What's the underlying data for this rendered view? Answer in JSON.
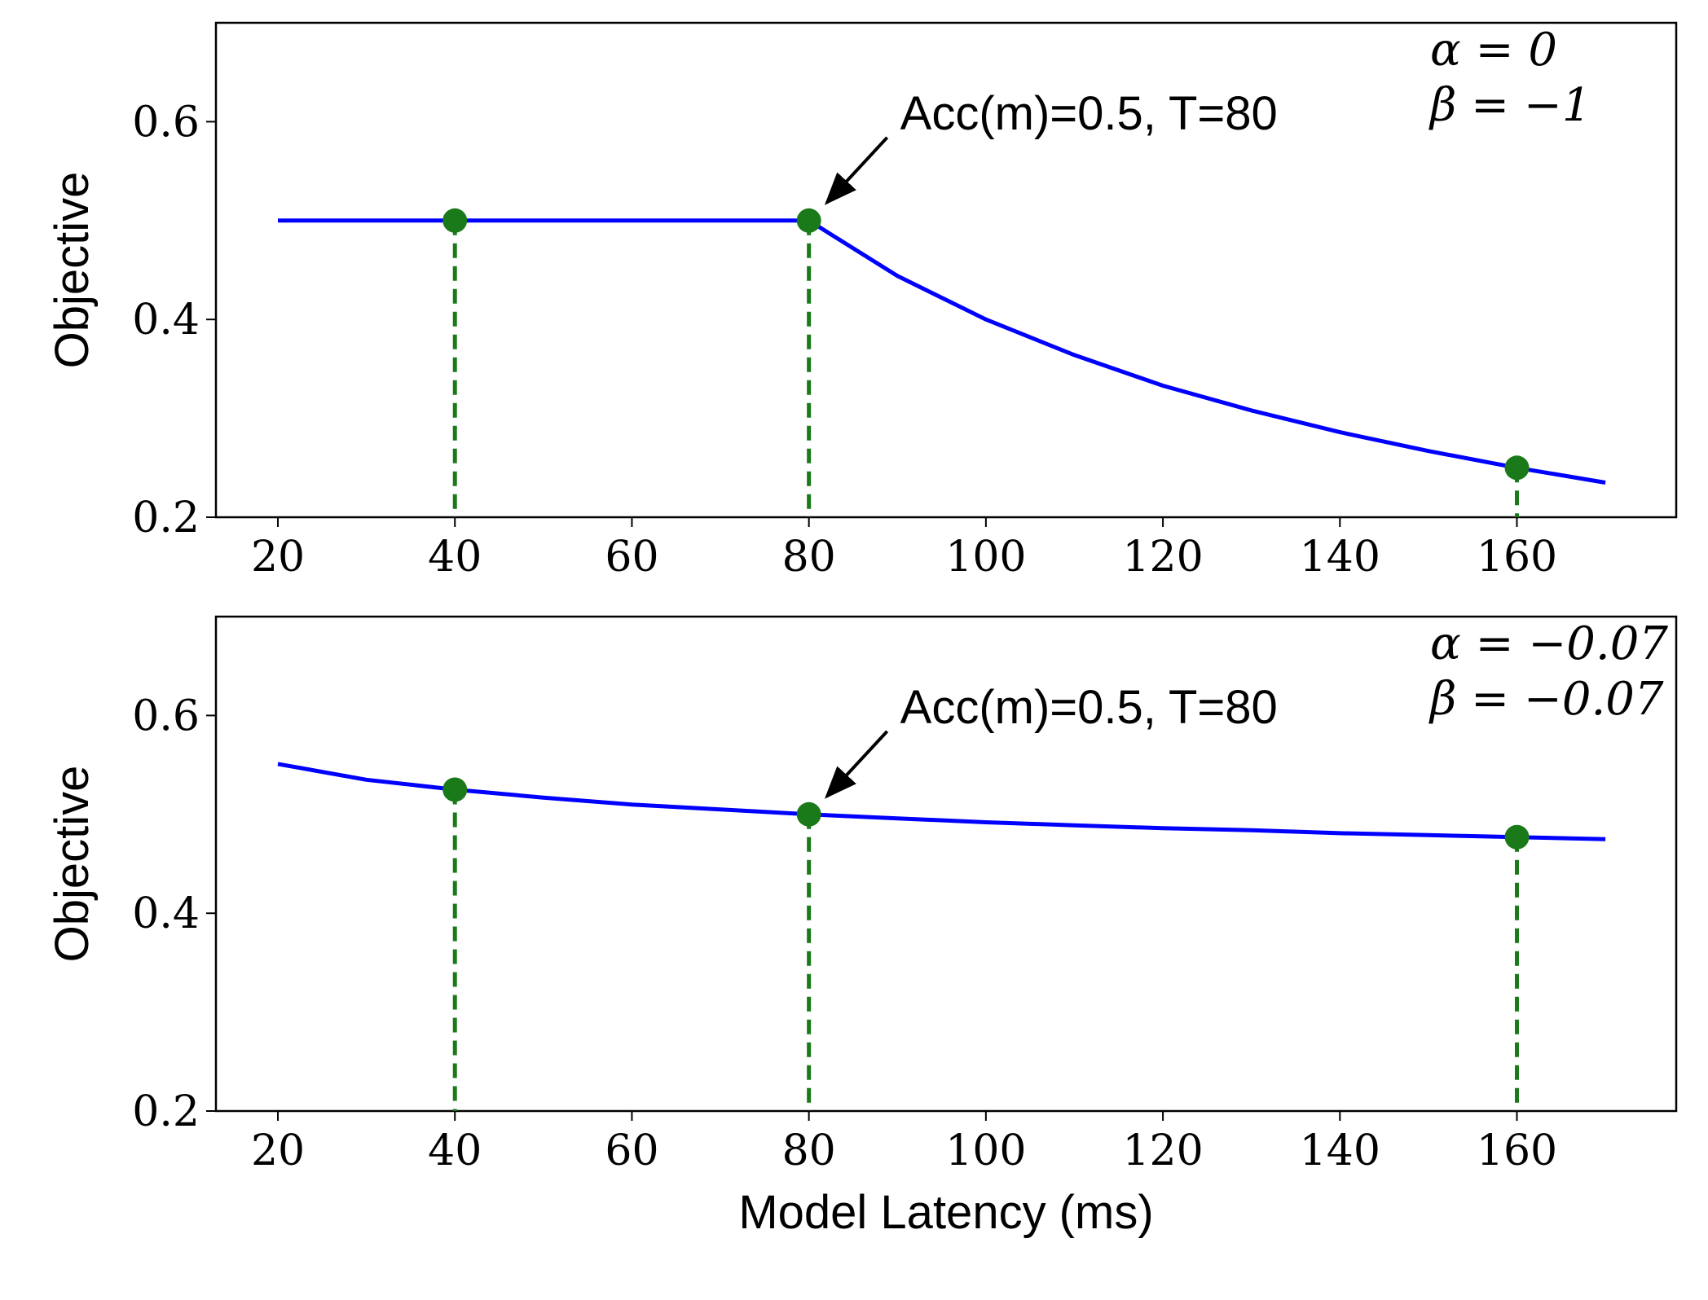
{
  "chart_data": [
    {
      "type": "line",
      "title": "",
      "xlabel": "",
      "ylabel": "Objective",
      "xlim": [
        13,
        178
      ],
      "ylim": [
        0.2,
        0.7
      ],
      "xticks": [
        20,
        40,
        60,
        80,
        100,
        120,
        140,
        160
      ],
      "xtick_labels": [
        "20",
        "40",
        "60",
        "80",
        "100",
        "120",
        "140",
        "160"
      ],
      "yticks": [
        0.2,
        0.4,
        0.6
      ],
      "ytick_labels": [
        "0.2",
        "0.4",
        "0.6"
      ],
      "grid": false,
      "params": {
        "alpha_text": "α = 0",
        "beta_text": "β = −1",
        "alpha": 0,
        "beta": -1
      },
      "acc": 0.5,
      "target_latency": 80,
      "curve": {
        "color": "#0000ff",
        "x": [
          20,
          30,
          40,
          50,
          60,
          70,
          80,
          90,
          100,
          110,
          120,
          130,
          140,
          150,
          160,
          170
        ],
        "y": [
          0.5,
          0.5,
          0.5,
          0.5,
          0.5,
          0.5,
          0.5,
          0.444,
          0.4,
          0.364,
          0.333,
          0.308,
          0.286,
          0.267,
          0.25,
          0.235
        ]
      },
      "markers": {
        "color": "#1a7a1a",
        "x": [
          40,
          80,
          160
        ],
        "y": [
          0.5,
          0.5,
          0.25
        ]
      },
      "annotation": {
        "text": "Acc(m)=0.5, T=80",
        "x": 80,
        "y": 0.5
      }
    },
    {
      "type": "line",
      "title": "",
      "xlabel": "Model Latency (ms)",
      "ylabel": "Objective",
      "xlim": [
        13,
        178
      ],
      "ylim": [
        0.2,
        0.7
      ],
      "xticks": [
        20,
        40,
        60,
        80,
        100,
        120,
        140,
        160
      ],
      "xtick_labels": [
        "20",
        "40",
        "60",
        "80",
        "100",
        "120",
        "140",
        "160"
      ],
      "yticks": [
        0.2,
        0.4,
        0.6
      ],
      "ytick_labels": [
        "0.2",
        "0.4",
        "0.6"
      ],
      "grid": false,
      "params": {
        "alpha_text": "α = −0.07",
        "beta_text": "β = −0.07",
        "alpha": -0.07,
        "beta": -0.07
      },
      "acc": 0.5,
      "target_latency": 80,
      "curve": {
        "color": "#0000ff",
        "x": [
          20,
          30,
          40,
          50,
          60,
          70,
          80,
          90,
          100,
          110,
          120,
          130,
          140,
          150,
          160,
          170
        ],
        "y": [
          0.551,
          0.535,
          0.525,
          0.517,
          0.51,
          0.505,
          0.5,
          0.496,
          0.492,
          0.489,
          0.486,
          0.484,
          0.481,
          0.479,
          0.477,
          0.475
        ]
      },
      "markers": {
        "color": "#1a7a1a",
        "x": [
          40,
          80,
          160
        ],
        "y": [
          0.525,
          0.5,
          0.477
        ]
      },
      "annotation": {
        "text": "Acc(m)=0.5, T=80",
        "x": 80,
        "y": 0.5
      }
    }
  ]
}
